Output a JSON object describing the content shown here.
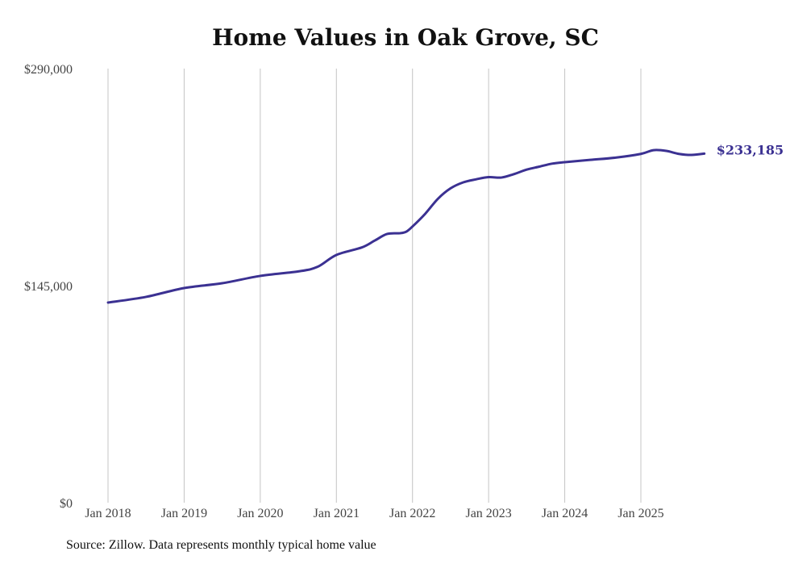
{
  "chart_data": {
    "type": "line",
    "title": "Home Values in Oak Grove, SC",
    "xlabel": "",
    "ylabel": "",
    "ylim": [
      0,
      290000
    ],
    "y_ticks": [
      {
        "value": 0,
        "label": "$0"
      },
      {
        "value": 145000,
        "label": "$145,000"
      },
      {
        "value": 290000,
        "label": "$290,000"
      }
    ],
    "x_ticks": [
      {
        "month": 0,
        "label": "Jan 2018"
      },
      {
        "month": 12,
        "label": "Jan 2019"
      },
      {
        "month": 24,
        "label": "Jan 2020"
      },
      {
        "month": 36,
        "label": "Jan 2021"
      },
      {
        "month": 48,
        "label": "Jan 2022"
      },
      {
        "month": 60,
        "label": "Jan 2023"
      },
      {
        "month": 72,
        "label": "Jan 2024"
      },
      {
        "month": 84,
        "label": "Jan 2025"
      }
    ],
    "grid": "vertical",
    "series": [
      {
        "name": "Typical home value",
        "color": "#3b3192",
        "x_unit": "months since Jan 2018",
        "x": [
          0,
          6,
          12,
          18,
          24,
          30,
          33,
          36,
          40,
          42,
          44,
          46,
          47,
          48,
          50,
          52,
          54,
          56,
          58,
          60,
          62,
          64,
          66,
          68,
          70,
          72,
          76,
          80,
          84,
          86,
          88,
          90,
          92,
          94
        ],
        "values": [
          133700,
          137500,
          143400,
          146600,
          151500,
          154500,
          157500,
          165500,
          170500,
          175000,
          179500,
          180000,
          181000,
          184500,
          193000,
          203000,
          210000,
          214000,
          216000,
          217500,
          217200,
          219500,
          222500,
          224500,
          226500,
          227500,
          229000,
          230500,
          233000,
          235500,
          235000,
          233000,
          232300,
          233185
        ]
      }
    ],
    "end_label": "$233,185"
  },
  "source": "Source: Zillow. Data represents monthly typical home value"
}
